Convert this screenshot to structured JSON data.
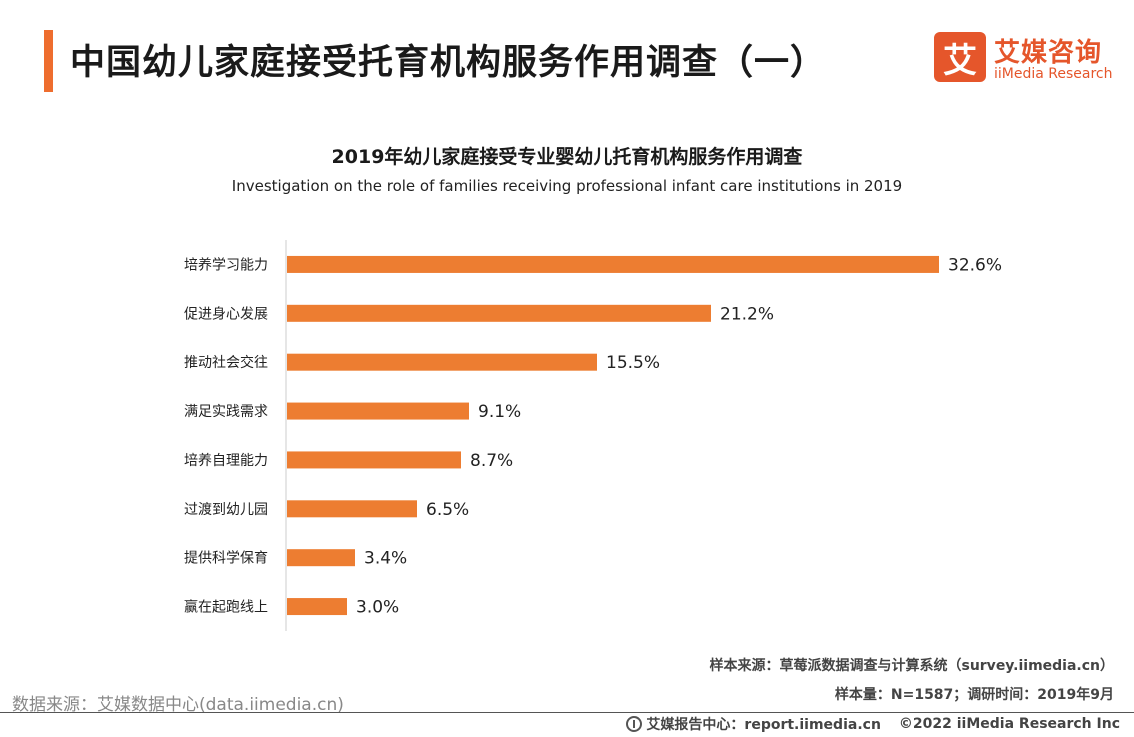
{
  "header": {
    "title": "中国幼儿家庭接受托育机构服务作用调查（一）"
  },
  "logo": {
    "mark": "艾",
    "name_cn": "艾媒咨询",
    "name_en": "iiMedia Research"
  },
  "colors": {
    "accent": "#ee6d2e",
    "bar": "#ed7d31",
    "axis": "#cccccc"
  },
  "chart_data": {
    "type": "bar",
    "orientation": "horizontal",
    "title": "2019年幼儿家庭接受专业婴幼儿托育机构服务作用调查",
    "subtitle": "Investigation on the role of families receiving professional infant care institutions in 2019",
    "categories": [
      "培养学习能力",
      "促进身心发展",
      "推动社会交往",
      "满足实践需求",
      "培养自理能力",
      "过渡到幼儿园",
      "提供科学保育",
      "赢在起跑线上"
    ],
    "values": [
      32.6,
      21.2,
      15.5,
      9.1,
      8.7,
      6.5,
      3.4,
      3.0
    ],
    "value_labels": [
      "32.6%",
      "21.2%",
      "15.5%",
      "9.1%",
      "8.7%",
      "6.5%",
      "3.4%",
      "3.0%"
    ],
    "unit": "%",
    "xlim": [
      0,
      35
    ],
    "grid": false,
    "legend": "none"
  },
  "notes": {
    "sample_source": "样本来源：草莓派数据调查与计算系统（survey.iimedia.cn）",
    "sample_size": "样本量：N=1587；调研时间：2019年9月"
  },
  "data_source": "数据来源：艾媒数据中心(data.iimedia.cn)",
  "footer": {
    "report_center": "艾媒报告中心：report.iimedia.cn",
    "copyright": "©2022  iiMedia Research  Inc"
  }
}
